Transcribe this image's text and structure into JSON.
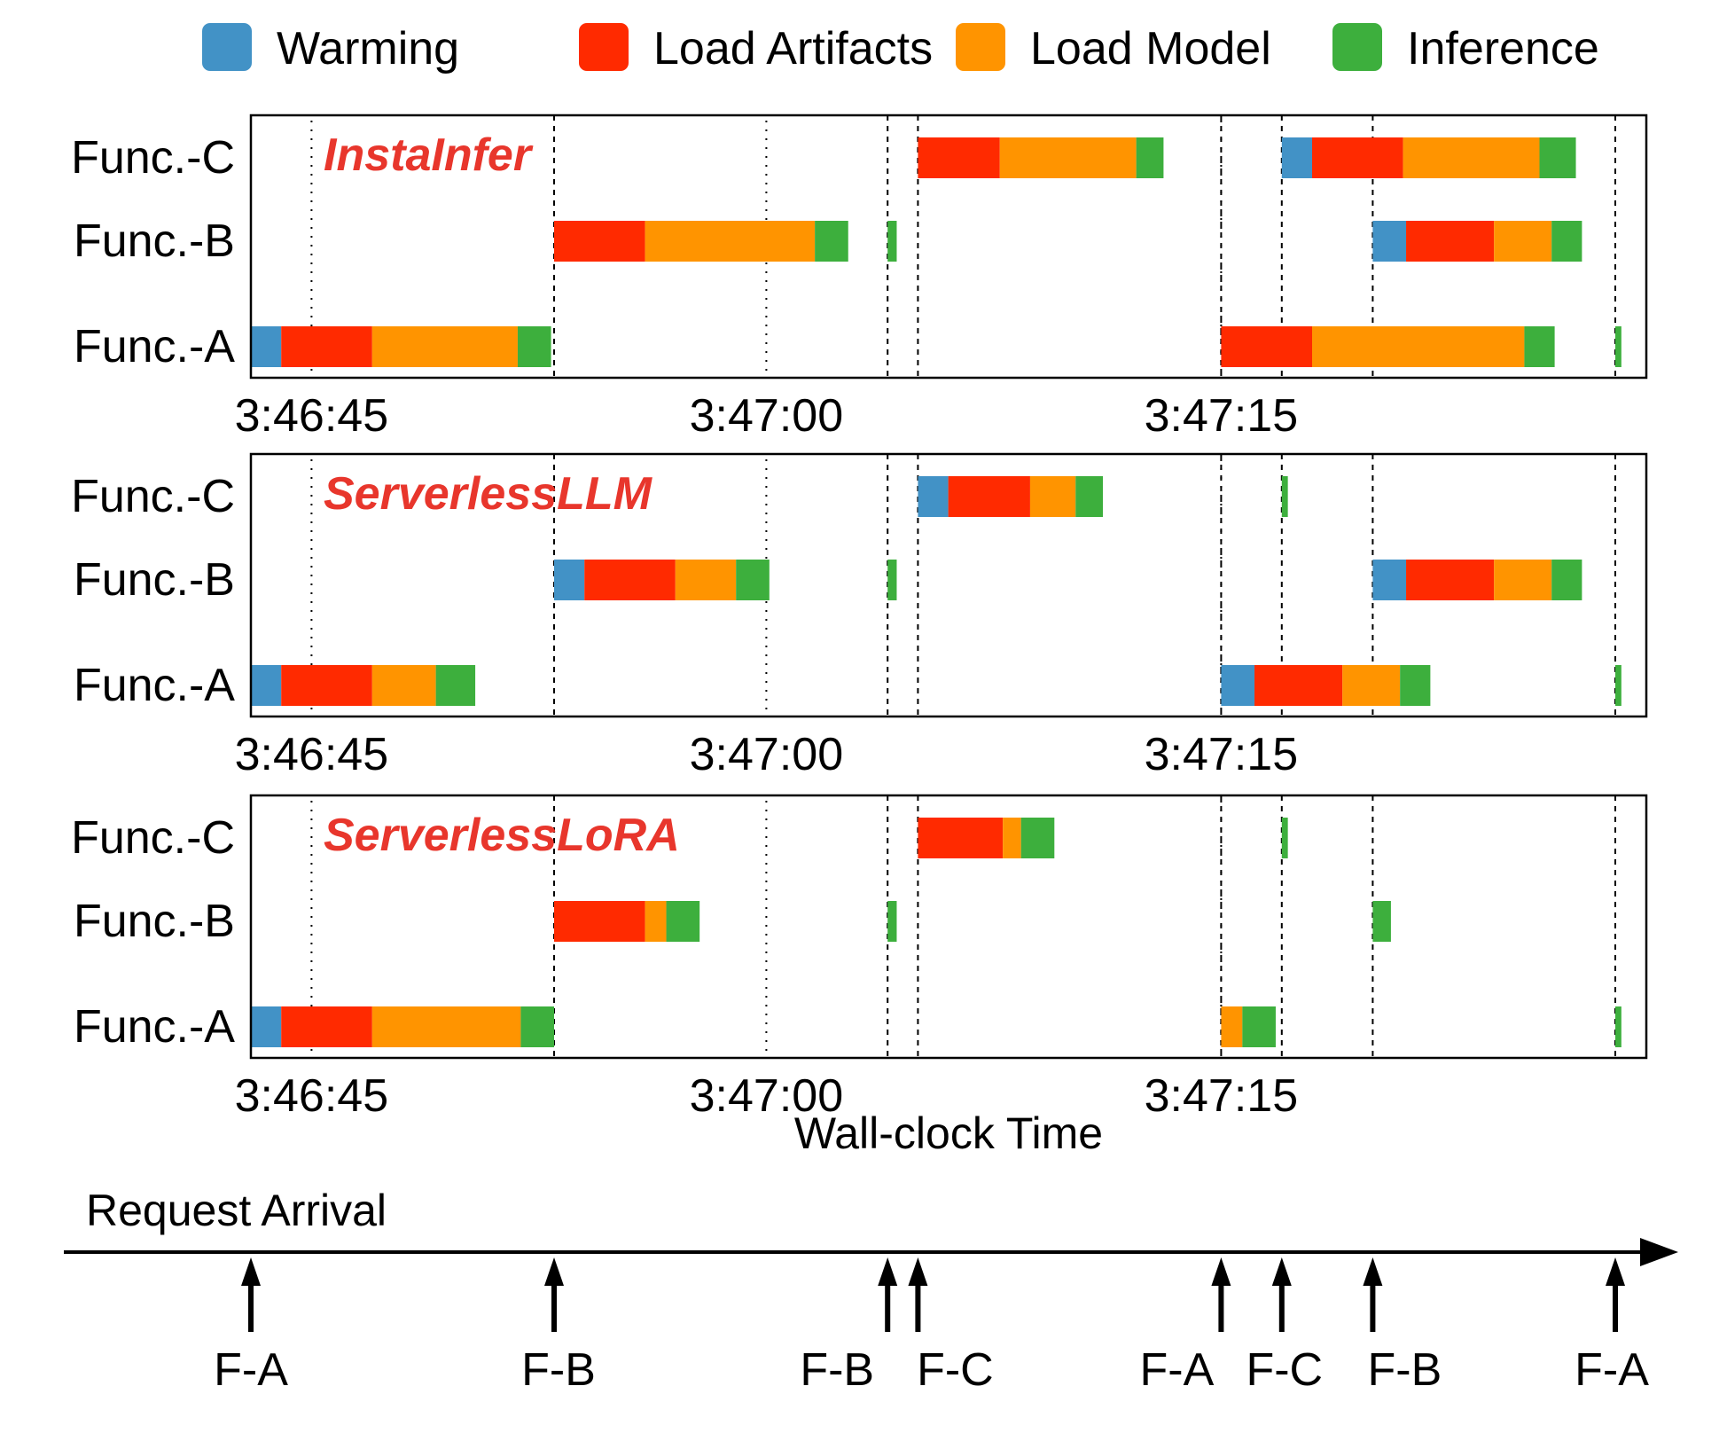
{
  "chart_data": {
    "type": "gantt",
    "xlabel": "Wall-clock Time",
    "time_start": "3:46:42.9",
    "x_ticks": [
      {
        "label": "3:46:45",
        "t": 2.0
      },
      {
        "label": "3:47:00",
        "t": 17.0
      },
      {
        "label": "3:47:15",
        "t": 32.0
      }
    ],
    "legend": [
      {
        "key": "warming",
        "label": "Warming",
        "color": "#4292c6"
      },
      {
        "key": "artifacts",
        "label": "Load Artifacts",
        "color": "#ff2a00"
      },
      {
        "key": "model",
        "label": "Load Model",
        "color": "#ff9400"
      },
      {
        "key": "inference",
        "label": "Inference",
        "color": "#3daf3d"
      }
    ],
    "rows": [
      "Func.-C",
      "Func.-B",
      "Func.-A"
    ],
    "panels": [
      {
        "system": "InstaInfer",
        "bars": [
          {
            "row": "Func.-C",
            "segments": [
              {
                "phase": "artifacts",
                "start": 22.0,
                "end": 24.7
              },
              {
                "phase": "model",
                "start": 24.7,
                "end": 29.2
              },
              {
                "phase": "inference",
                "start": 29.2,
                "end": 30.1
              }
            ]
          },
          {
            "row": "Func.-C",
            "segments": [
              {
                "phase": "warming",
                "start": 34.0,
                "end": 35.0
              },
              {
                "phase": "artifacts",
                "start": 35.0,
                "end": 38.0
              },
              {
                "phase": "model",
                "start": 38.0,
                "end": 42.5
              },
              {
                "phase": "inference",
                "start": 42.5,
                "end": 43.7
              }
            ]
          },
          {
            "row": "Func.-B",
            "segments": [
              {
                "phase": "artifacts",
                "start": 10.0,
                "end": 13.0
              },
              {
                "phase": "model",
                "start": 13.0,
                "end": 18.6
              },
              {
                "phase": "inference",
                "start": 18.6,
                "end": 19.7
              }
            ]
          },
          {
            "row": "Func.-B",
            "segments": [
              {
                "phase": "inference",
                "start": 21.0,
                "end": 21.3
              }
            ]
          },
          {
            "row": "Func.-B",
            "segments": [
              {
                "phase": "warming",
                "start": 37.0,
                "end": 38.1
              },
              {
                "phase": "artifacts",
                "start": 38.1,
                "end": 41.0
              },
              {
                "phase": "model",
                "start": 41.0,
                "end": 42.9
              },
              {
                "phase": "inference",
                "start": 42.9,
                "end": 43.9
              }
            ]
          },
          {
            "row": "Func.-A",
            "segments": [
              {
                "phase": "warming",
                "start": 0.0,
                "end": 1.0
              },
              {
                "phase": "artifacts",
                "start": 1.0,
                "end": 4.0
              },
              {
                "phase": "model",
                "start": 4.0,
                "end": 8.8
              },
              {
                "phase": "inference",
                "start": 8.8,
                "end": 9.9
              }
            ]
          },
          {
            "row": "Func.-A",
            "segments": [
              {
                "phase": "artifacts",
                "start": 32.0,
                "end": 35.0
              },
              {
                "phase": "model",
                "start": 35.0,
                "end": 42.0
              },
              {
                "phase": "inference",
                "start": 42.0,
                "end": 43.0
              }
            ]
          },
          {
            "row": "Func.-A",
            "segments": [
              {
                "phase": "inference",
                "start": 45.0,
                "end": 45.2
              }
            ]
          }
        ]
      },
      {
        "system": "ServerlessLLM",
        "bars": [
          {
            "row": "Func.-C",
            "segments": [
              {
                "phase": "warming",
                "start": 22.0,
                "end": 23.0
              },
              {
                "phase": "artifacts",
                "start": 23.0,
                "end": 25.7
              },
              {
                "phase": "model",
                "start": 25.7,
                "end": 27.2
              },
              {
                "phase": "inference",
                "start": 27.2,
                "end": 28.1
              }
            ]
          },
          {
            "row": "Func.-C",
            "segments": [
              {
                "phase": "inference",
                "start": 34.0,
                "end": 34.2
              }
            ]
          },
          {
            "row": "Func.-B",
            "segments": [
              {
                "phase": "warming",
                "start": 10.0,
                "end": 11.0
              },
              {
                "phase": "artifacts",
                "start": 11.0,
                "end": 14.0
              },
              {
                "phase": "model",
                "start": 14.0,
                "end": 16.0
              },
              {
                "phase": "inference",
                "start": 16.0,
                "end": 17.1
              }
            ]
          },
          {
            "row": "Func.-B",
            "segments": [
              {
                "phase": "inference",
                "start": 21.0,
                "end": 21.3
              }
            ]
          },
          {
            "row": "Func.-B",
            "segments": [
              {
                "phase": "warming",
                "start": 37.0,
                "end": 38.1
              },
              {
                "phase": "artifacts",
                "start": 38.1,
                "end": 41.0
              },
              {
                "phase": "model",
                "start": 41.0,
                "end": 42.9
              },
              {
                "phase": "inference",
                "start": 42.9,
                "end": 43.9
              }
            ]
          },
          {
            "row": "Func.-A",
            "segments": [
              {
                "phase": "warming",
                "start": 0.0,
                "end": 1.0
              },
              {
                "phase": "artifacts",
                "start": 1.0,
                "end": 4.0
              },
              {
                "phase": "model",
                "start": 4.0,
                "end": 6.1
              },
              {
                "phase": "inference",
                "start": 6.1,
                "end": 7.4
              }
            ]
          },
          {
            "row": "Func.-A",
            "segments": [
              {
                "phase": "warming",
                "start": 32.0,
                "end": 33.1
              },
              {
                "phase": "artifacts",
                "start": 33.1,
                "end": 36.0
              },
              {
                "phase": "model",
                "start": 36.0,
                "end": 37.9
              },
              {
                "phase": "inference",
                "start": 37.9,
                "end": 38.9
              }
            ]
          },
          {
            "row": "Func.-A",
            "segments": [
              {
                "phase": "inference",
                "start": 45.0,
                "end": 45.2
              }
            ]
          }
        ]
      },
      {
        "system": "ServerlessLoRA",
        "bars": [
          {
            "row": "Func.-C",
            "segments": [
              {
                "phase": "artifacts",
                "start": 22.0,
                "end": 24.8
              },
              {
                "phase": "model",
                "start": 24.8,
                "end": 25.4
              },
              {
                "phase": "inference",
                "start": 25.4,
                "end": 26.5
              }
            ]
          },
          {
            "row": "Func.-C",
            "segments": [
              {
                "phase": "inference",
                "start": 34.0,
                "end": 34.2
              }
            ]
          },
          {
            "row": "Func.-B",
            "segments": [
              {
                "phase": "artifacts",
                "start": 10.0,
                "end": 13.0
              },
              {
                "phase": "model",
                "start": 13.0,
                "end": 13.7
              },
              {
                "phase": "inference",
                "start": 13.7,
                "end": 14.8
              }
            ]
          },
          {
            "row": "Func.-B",
            "segments": [
              {
                "phase": "inference",
                "start": 21.0,
                "end": 21.3
              }
            ]
          },
          {
            "row": "Func.-B",
            "segments": [
              {
                "phase": "inference",
                "start": 37.0,
                "end": 37.6
              }
            ]
          },
          {
            "row": "Func.-A",
            "segments": [
              {
                "phase": "warming",
                "start": 0.0,
                "end": 1.0
              },
              {
                "phase": "artifacts",
                "start": 1.0,
                "end": 4.0
              },
              {
                "phase": "model",
                "start": 4.0,
                "end": 8.9
              },
              {
                "phase": "inference",
                "start": 8.9,
                "end": 10.0
              }
            ]
          },
          {
            "row": "Func.-A",
            "segments": [
              {
                "phase": "model",
                "start": 32.0,
                "end": 32.7
              },
              {
                "phase": "inference",
                "start": 32.7,
                "end": 33.8
              }
            ]
          },
          {
            "row": "Func.-A",
            "segments": [
              {
                "phase": "inference",
                "start": 45.0,
                "end": 45.2
              }
            ]
          }
        ]
      }
    ],
    "request_arrival": {
      "label": "Request Arrival",
      "requests": [
        {
          "label": "F-A",
          "t": 0.0
        },
        {
          "label": "F-B",
          "t": 10.0
        },
        {
          "label": "F-B",
          "t": 21.0
        },
        {
          "label": "F-C",
          "t": 22.0
        },
        {
          "label": "F-A",
          "t": 32.0
        },
        {
          "label": "F-C",
          "t": 34.0
        },
        {
          "label": "F-B",
          "t": 37.0
        },
        {
          "label": "F-A",
          "t": 45.0
        }
      ]
    }
  }
}
